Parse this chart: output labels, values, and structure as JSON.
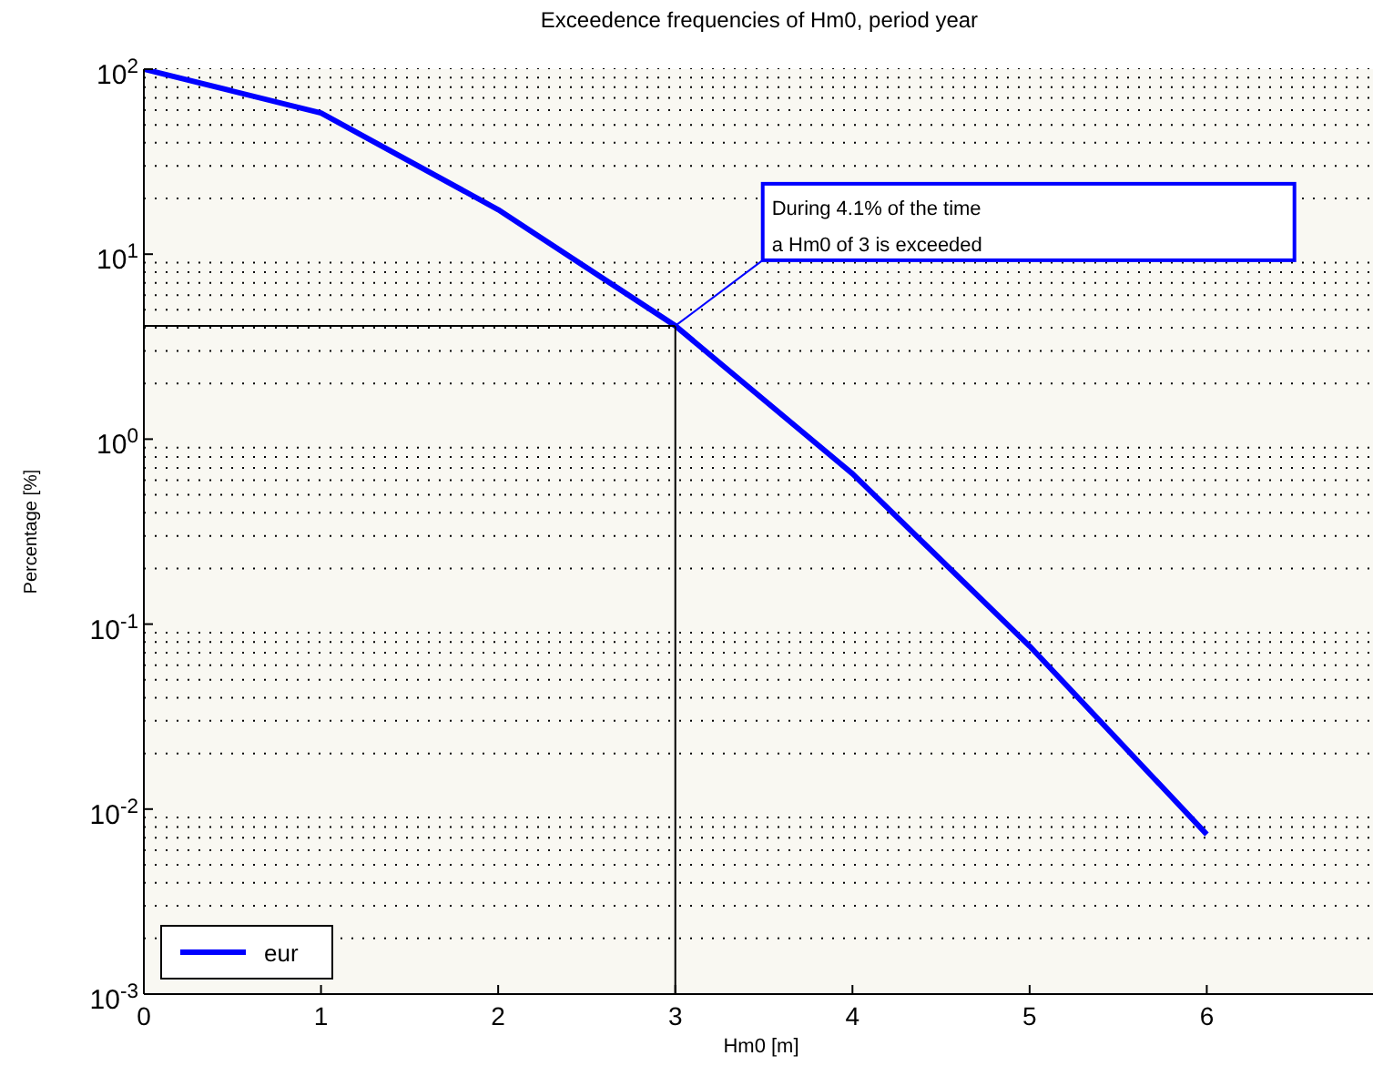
{
  "chart_data": {
    "type": "line",
    "title": "Exceedence frequencies of Hm0, period year",
    "xlabel": "Hm0 [m]",
    "ylabel": "Percentage [%]",
    "x": [
      0,
      1,
      2,
      3,
      4,
      5,
      6
    ],
    "series": [
      {
        "name": "eur",
        "color": "#0000ff",
        "values": [
          100,
          58,
          17.4,
          4.1,
          0.65,
          0.076,
          0.0073
        ]
      }
    ],
    "ref_lines": [
      {
        "axis": "y",
        "value": 4.1,
        "color": "#000000"
      },
      {
        "axis": "x",
        "value": 3,
        "color": "#000000"
      }
    ],
    "annotations": [
      {
        "text": "During 4.1% of the time\na Hm0 of 3 is exceeded",
        "x": 3,
        "y": 4.1
      }
    ],
    "xlim": [
      0,
      7
    ],
    "xticks": [
      0,
      1,
      2,
      3,
      4,
      5,
      6
    ],
    "ylim": [
      0.001,
      100
    ],
    "yticks": [
      {
        "value": 0.001,
        "label": "10$^{-3}$"
      },
      {
        "value": 0.01,
        "label": "10$^{-2}$"
      },
      {
        "value": 0.1,
        "label": "10$^{-1}$"
      },
      {
        "value": 1,
        "label": "10$^{0}$"
      },
      {
        "value": 10,
        "label": "10$^{1}$"
      },
      {
        "value": 100,
        "label": "10$^{2}$"
      }
    ],
    "log": true,
    "grid": true,
    "legend": "bottom left",
    "marker": "none",
    "line_style": "solid"
  }
}
